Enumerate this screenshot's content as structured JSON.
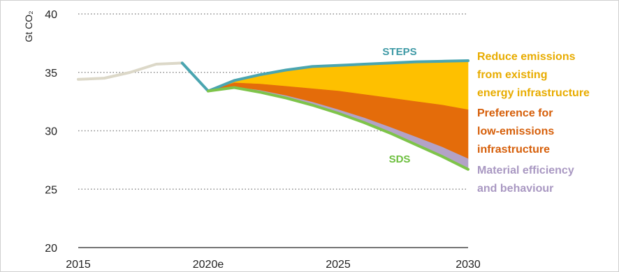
{
  "chart_data": {
    "type": "area",
    "title": "",
    "xlabel": "",
    "ylabel": "Gt CO₂",
    "ylim": [
      20,
      40
    ],
    "yticks": [
      20,
      25,
      30,
      35,
      40
    ],
    "xlim": [
      2015,
      2030
    ],
    "xticks": [
      {
        "value": 2015,
        "label": "2015"
      },
      {
        "value": 2020,
        "label": "2020e"
      },
      {
        "value": 2025,
        "label": "2025"
      },
      {
        "value": 2030,
        "label": "2030"
      }
    ],
    "grid": "horizontal dotted",
    "series": [
      {
        "name": "",
        "kind": "historical-line",
        "color": "#dcd8c8",
        "x": [
          2015,
          2016,
          2017,
          2018,
          2019
        ],
        "values": [
          34.4,
          34.5,
          35.0,
          35.7,
          35.8
        ]
      },
      {
        "name": "STEPS",
        "kind": "line",
        "color": "#4aa5b0",
        "x": [
          2019,
          2020,
          2021,
          2022,
          2023,
          2024,
          2025,
          2026,
          2027,
          2028,
          2029,
          2030
        ],
        "values": [
          35.8,
          33.4,
          34.3,
          34.8,
          35.2,
          35.5,
          35.6,
          35.7,
          35.8,
          35.9,
          35.95,
          36.0
        ]
      },
      {
        "name": "SDS",
        "kind": "line",
        "color": "#7ec44a",
        "x": [
          2020,
          2021,
          2022,
          2023,
          2024,
          2025,
          2026,
          2027,
          2028,
          2029,
          2030
        ],
        "values": [
          33.4,
          33.7,
          33.3,
          32.8,
          32.2,
          31.5,
          30.7,
          29.8,
          28.8,
          27.8,
          26.7
        ]
      }
    ],
    "wedges": [
      {
        "name": "Reduce emissions from existing energy infrastructure",
        "color": "#fec000",
        "x": [
          2020,
          2021,
          2022,
          2023,
          2024,
          2025,
          2026,
          2027,
          2028,
          2029,
          2030
        ],
        "upper": [
          33.4,
          34.3,
          34.8,
          35.2,
          35.5,
          35.6,
          35.7,
          35.8,
          35.9,
          35.95,
          36.0
        ],
        "lower": [
          33.4,
          34.1,
          34.0,
          33.8,
          33.6,
          33.4,
          33.1,
          32.8,
          32.5,
          32.2,
          31.8
        ]
      },
      {
        "name": "Preference for low-emissions infrastructure",
        "color": "#e46c0a",
        "x": [
          2020,
          2021,
          2022,
          2023,
          2024,
          2025,
          2026,
          2027,
          2028,
          2029,
          2030
        ],
        "upper": [
          33.4,
          34.1,
          34.0,
          33.8,
          33.6,
          33.4,
          33.1,
          32.8,
          32.5,
          32.2,
          31.8
        ],
        "lower": [
          33.4,
          33.75,
          33.45,
          33.0,
          32.45,
          31.8,
          31.1,
          30.3,
          29.45,
          28.6,
          27.6
        ]
      },
      {
        "name": "Material efficiency and behaviour",
        "color": "#b3a2c7",
        "x": [
          2020,
          2021,
          2022,
          2023,
          2024,
          2025,
          2026,
          2027,
          2028,
          2029,
          2030
        ],
        "upper": [
          33.4,
          33.75,
          33.45,
          33.0,
          32.45,
          31.8,
          31.1,
          30.3,
          29.45,
          28.6,
          27.6
        ],
        "lower": [
          33.4,
          33.7,
          33.3,
          32.8,
          32.2,
          31.5,
          30.7,
          29.8,
          28.8,
          27.8,
          26.7
        ]
      }
    ],
    "legend": [
      {
        "lines": [
          "Reduce emissions",
          "from existing",
          "energy infrastructure"
        ],
        "color": "#e8ac00",
        "position": "right"
      },
      {
        "lines": [
          "Preference for",
          "low-emissions",
          "infrastructure"
        ],
        "color": "#d65f0a",
        "position": "right"
      },
      {
        "lines": [
          "Material efficiency",
          "and behaviour"
        ],
        "color": "#a998c2",
        "position": "right"
      }
    ],
    "series_labels": [
      {
        "text": "STEPS",
        "color": "#3f9aa6"
      },
      {
        "text": "SDS",
        "color": "#6cbf3d"
      }
    ]
  }
}
